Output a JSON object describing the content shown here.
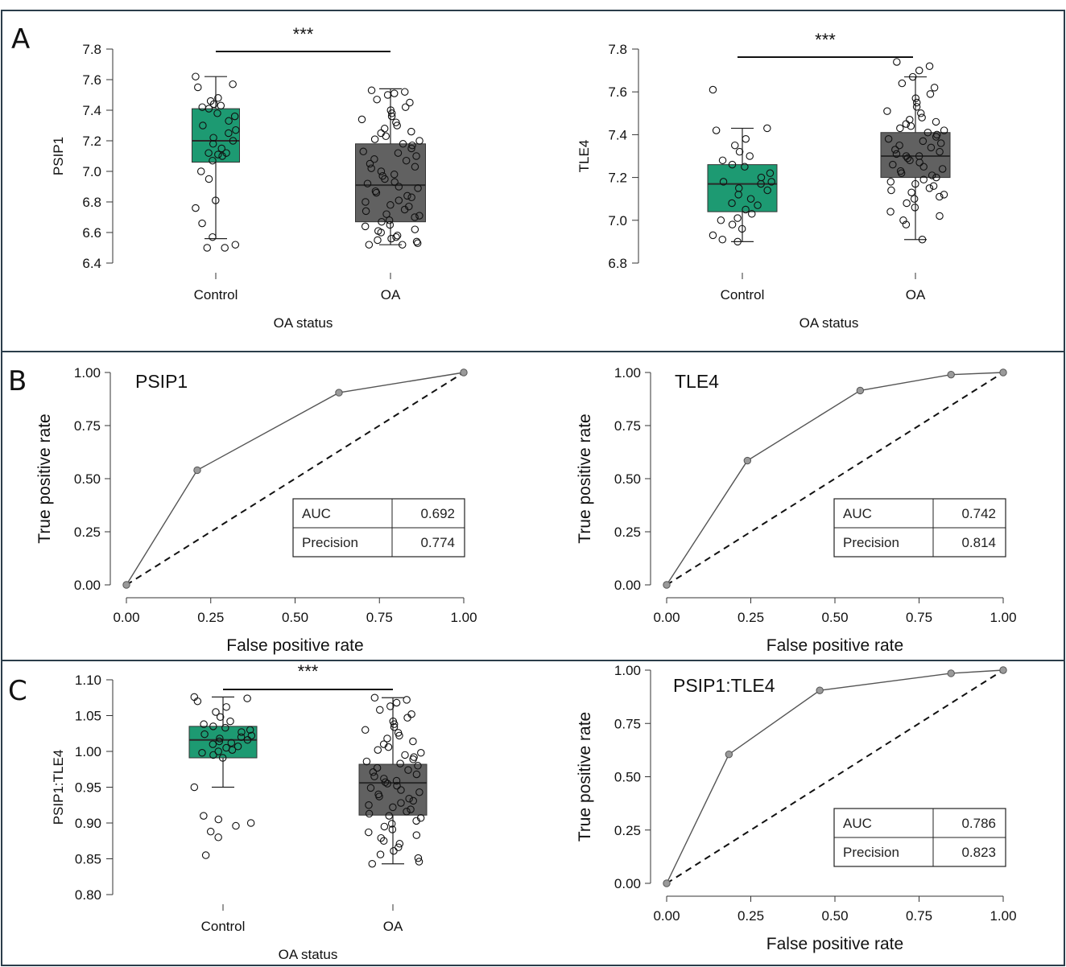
{
  "colors": {
    "control": "#1d9a72",
    "oa": "#616161",
    "roc_line": "#555555",
    "roc_point": "#9a9a9a",
    "frame": "#2b3d4a"
  },
  "panels": {
    "a": "A",
    "b": "B",
    "c": "C"
  },
  "chart_data": [
    {
      "id": "A1",
      "type": "box",
      "ylabel": "PSIP1",
      "xlabel": "OA status",
      "categories": [
        "Control",
        "OA"
      ],
      "ylim": [
        6.4,
        7.8
      ],
      "yticks": [
        "6.4",
        "6.6",
        "6.8",
        "7.0",
        "7.2",
        "7.4",
        "7.6",
        "7.8"
      ],
      "significance": "***",
      "boxes": [
        {
          "name": "Control",
          "whisker_low": 6.56,
          "q1": 7.06,
          "median": 7.2,
          "q3": 7.41,
          "whisker_high": 7.62,
          "points": [
            7.62,
            7.57,
            7.55,
            7.48,
            7.46,
            7.44,
            7.43,
            7.42,
            7.41,
            7.38,
            7.36,
            7.33,
            7.3,
            7.27,
            7.25,
            7.22,
            7.2,
            7.18,
            7.15,
            7.12,
            7.12,
            7.11,
            7.1,
            7.07,
            7.0,
            6.95,
            6.81,
            6.76,
            6.66,
            6.57,
            6.52,
            6.5,
            6.5
          ]
        },
        {
          "name": "OA",
          "whisker_low": 6.52,
          "q1": 6.67,
          "median": 6.91,
          "q3": 7.18,
          "whisker_high": 7.54,
          "points": [
            7.53,
            7.52,
            7.51,
            7.5,
            7.47,
            7.45,
            7.42,
            7.4,
            7.38,
            7.36,
            7.34,
            7.32,
            7.3,
            7.28,
            7.26,
            7.25,
            7.23,
            7.21,
            7.2,
            7.18,
            7.17,
            7.15,
            7.13,
            7.12,
            7.1,
            7.08,
            7.07,
            7.05,
            7.03,
            7.02,
            7.0,
            6.98,
            6.97,
            6.95,
            6.93,
            6.92,
            6.9,
            6.89,
            6.87,
            6.86,
            6.84,
            6.83,
            6.81,
            6.8,
            6.78,
            6.77,
            6.75,
            6.74,
            6.72,
            6.71,
            6.7,
            6.68,
            6.67,
            6.65,
            6.64,
            6.62,
            6.61,
            6.6,
            6.58,
            6.57,
            6.56,
            6.55,
            6.54,
            6.53,
            6.52,
            6.52
          ]
        }
      ]
    },
    {
      "id": "A2",
      "type": "box",
      "ylabel": "TLE4",
      "xlabel": "OA status",
      "categories": [
        "Control",
        "OA"
      ],
      "ylim": [
        6.8,
        7.8
      ],
      "yticks": [
        "6.8",
        "7.0",
        "7.2",
        "7.4",
        "7.6",
        "7.8"
      ],
      "significance": "***",
      "boxes": [
        {
          "name": "Control",
          "whisker_low": 6.9,
          "q1": 7.04,
          "median": 7.17,
          "q3": 7.26,
          "whisker_high": 7.43,
          "points": [
            7.61,
            7.43,
            7.42,
            7.38,
            7.35,
            7.32,
            7.3,
            7.28,
            7.26,
            7.25,
            7.22,
            7.2,
            7.18,
            7.18,
            7.17,
            7.15,
            7.14,
            7.12,
            7.1,
            7.08,
            7.07,
            7.05,
            7.03,
            7.01,
            7.0,
            6.98,
            6.96,
            6.93,
            6.91,
            6.9
          ]
        },
        {
          "name": "OA",
          "whisker_low": 6.91,
          "q1": 7.2,
          "median": 7.3,
          "q3": 7.41,
          "whisker_high": 7.67,
          "points": [
            7.74,
            7.72,
            7.7,
            7.67,
            7.64,
            7.62,
            7.59,
            7.57,
            7.55,
            7.53,
            7.51,
            7.5,
            7.48,
            7.47,
            7.46,
            7.45,
            7.44,
            7.43,
            7.42,
            7.41,
            7.4,
            7.39,
            7.38,
            7.37,
            7.36,
            7.35,
            7.34,
            7.33,
            7.32,
            7.31,
            7.3,
            7.3,
            7.29,
            7.28,
            7.27,
            7.26,
            7.25,
            7.24,
            7.23,
            7.22,
            7.21,
            7.2,
            7.19,
            7.18,
            7.17,
            7.16,
            7.15,
            7.14,
            7.13,
            7.12,
            7.11,
            7.1,
            7.08,
            7.06,
            7.04,
            7.02,
            7.0,
            6.98,
            6.91
          ]
        }
      ]
    },
    {
      "id": "B1",
      "type": "line",
      "title": "PSIP1",
      "xlabel": "False positive rate",
      "ylabel": "True positive rate",
      "xlim": [
        0,
        1
      ],
      "ylim": [
        0,
        1
      ],
      "xticks": [
        "0.00",
        "0.25",
        "0.50",
        "0.75",
        "1.00"
      ],
      "yticks": [
        "0.00",
        "0.25",
        "0.50",
        "0.75",
        "1.00"
      ],
      "x": [
        0,
        0.21,
        0.63,
        1.0
      ],
      "y": [
        0,
        0.54,
        0.905,
        1.0
      ],
      "table": [
        [
          "AUC",
          "0.692"
        ],
        [
          "Precision",
          "0.774"
        ]
      ]
    },
    {
      "id": "B2",
      "type": "line",
      "title": "TLE4",
      "xlabel": "False positive rate",
      "ylabel": "True positive rate",
      "xlim": [
        0,
        1
      ],
      "ylim": [
        0,
        1
      ],
      "xticks": [
        "0.00",
        "0.25",
        "0.50",
        "0.75",
        "1.00"
      ],
      "yticks": [
        "0.00",
        "0.25",
        "0.50",
        "0.75",
        "1.00"
      ],
      "x": [
        0,
        0.24,
        0.575,
        0.845,
        1.0
      ],
      "y": [
        0,
        0.585,
        0.915,
        0.99,
        1.0
      ],
      "table": [
        [
          "AUC",
          "0.742"
        ],
        [
          "Precision",
          "0.814"
        ]
      ]
    },
    {
      "id": "C1",
      "type": "box",
      "ylabel": "PSIP1:TLE4",
      "xlabel": "OA status",
      "categories": [
        "Control",
        "OA"
      ],
      "ylim": [
        0.8,
        1.1
      ],
      "yticks": [
        "0.80",
        "0.85",
        "0.90",
        "0.95",
        "1.00",
        "1.05",
        "1.10"
      ],
      "significance": "***",
      "boxes": [
        {
          "name": "Control",
          "whisker_low": 0.95,
          "q1": 0.991,
          "median": 1.016,
          "q3": 1.035,
          "whisker_high": 1.076,
          "points": [
            1.076,
            1.074,
            1.07,
            1.062,
            1.055,
            1.048,
            1.042,
            1.038,
            1.035,
            1.033,
            1.03,
            1.027,
            1.024,
            1.022,
            1.02,
            1.018,
            1.016,
            1.014,
            1.012,
            1.01,
            1.007,
            1.005,
            1.002,
            1.0,
            0.998,
            0.995,
            0.991,
            0.95,
            0.91,
            0.905,
            0.9,
            0.896,
            0.888,
            0.88,
            0.855
          ]
        },
        {
          "name": "OA",
          "whisker_low": 0.843,
          "q1": 0.911,
          "median": 0.956,
          "q3": 0.982,
          "whisker_high": 1.075,
          "points": [
            1.075,
            1.072,
            1.068,
            1.063,
            1.058,
            1.052,
            1.047,
            1.042,
            1.038,
            1.034,
            1.03,
            1.026,
            1.022,
            1.018,
            1.014,
            1.01,
            1.006,
            1.002,
            0.998,
            0.995,
            0.992,
            0.989,
            0.986,
            0.983,
            0.98,
            0.977,
            0.974,
            0.971,
            0.968,
            0.965,
            0.962,
            0.959,
            0.957,
            0.955,
            0.952,
            0.949,
            0.946,
            0.943,
            0.94,
            0.937,
            0.934,
            0.931,
            0.928,
            0.925,
            0.922,
            0.919,
            0.916,
            0.913,
            0.91,
            0.907,
            0.903,
            0.899,
            0.895,
            0.891,
            0.887,
            0.883,
            0.879,
            0.875,
            0.871,
            0.866,
            0.861,
            0.856,
            0.851,
            0.846,
            0.843
          ]
        }
      ]
    },
    {
      "id": "C2",
      "type": "line",
      "title": "PSIP1:TLE4",
      "xlabel": "False positive rate",
      "ylabel": "True positive rate",
      "xlim": [
        0,
        1
      ],
      "ylim": [
        0,
        1
      ],
      "xticks": [
        "0.00",
        "0.25",
        "0.50",
        "0.75",
        "1.00"
      ],
      "yticks": [
        "0.00",
        "0.25",
        "0.50",
        "0.75",
        "1.00"
      ],
      "x": [
        0,
        0.185,
        0.455,
        0.845,
        1.0
      ],
      "y": [
        0,
        0.605,
        0.905,
        0.985,
        1.0
      ],
      "table": [
        [
          "AUC",
          "0.786"
        ],
        [
          "Precision",
          "0.823"
        ]
      ]
    }
  ]
}
